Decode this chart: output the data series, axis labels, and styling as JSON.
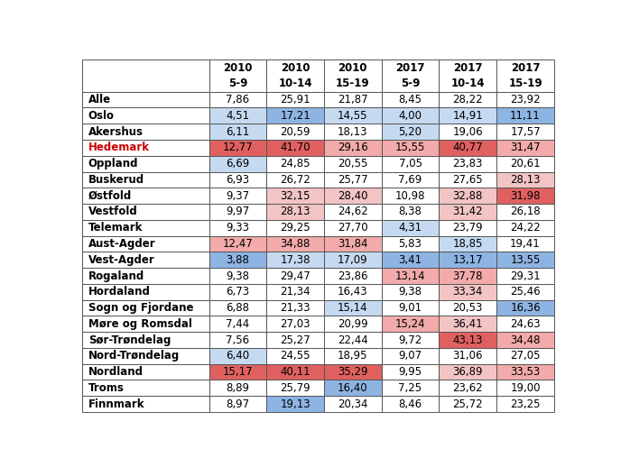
{
  "headers": [
    "",
    "2010\n5-9",
    "2010\n10-14",
    "2010\n15-19",
    "2017\n5-9",
    "2017\n10-14",
    "2017\n15-19"
  ],
  "rows": [
    [
      "Alle",
      "7,86",
      "25,91",
      "21,87",
      "8,45",
      "28,22",
      "23,92"
    ],
    [
      "Oslo",
      "4,51",
      "17,21",
      "14,55",
      "4,00",
      "14,91",
      "11,11"
    ],
    [
      "Akershus",
      "6,11",
      "20,59",
      "18,13",
      "5,20",
      "19,06",
      "17,57"
    ],
    [
      "Hedemark",
      "12,77",
      "41,70",
      "29,16",
      "15,55",
      "40,77",
      "31,47"
    ],
    [
      "Oppland",
      "6,69",
      "24,85",
      "20,55",
      "7,05",
      "23,83",
      "20,61"
    ],
    [
      "Buskerud",
      "6,93",
      "26,72",
      "25,77",
      "7,69",
      "27,65",
      "28,13"
    ],
    [
      "Østfold",
      "9,37",
      "32,15",
      "28,40",
      "10,98",
      "32,88",
      "31,98"
    ],
    [
      "Vestfold",
      "9,97",
      "28,13",
      "24,62",
      "8,38",
      "31,42",
      "26,18"
    ],
    [
      "Telemark",
      "9,33",
      "29,25",
      "27,70",
      "4,31",
      "23,79",
      "24,22"
    ],
    [
      "Aust-Agder",
      "12,47",
      "34,88",
      "31,84",
      "5,83",
      "18,85",
      "19,41"
    ],
    [
      "Vest-Agder",
      "3,88",
      "17,38",
      "17,09",
      "3,41",
      "13,17",
      "13,55"
    ],
    [
      "Rogaland",
      "9,38",
      "29,47",
      "23,86",
      "13,14",
      "37,78",
      "29,31"
    ],
    [
      "Hordaland",
      "6,73",
      "21,34",
      "16,43",
      "9,38",
      "33,34",
      "25,46"
    ],
    [
      "Sogn og Fjordane",
      "6,88",
      "21,33",
      "15,14",
      "9,01",
      "20,53",
      "16,36"
    ],
    [
      "Møre og Romsdal",
      "7,44",
      "27,03",
      "20,99",
      "15,24",
      "36,41",
      "24,63"
    ],
    [
      "Sør-Trøndelag",
      "7,56",
      "25,27",
      "22,44",
      "9,72",
      "43,13",
      "34,48"
    ],
    [
      "Nord-Trøndelag",
      "6,40",
      "24,55",
      "18,95",
      "9,07",
      "31,06",
      "27,05"
    ],
    [
      "Nordland",
      "15,17",
      "40,11",
      "35,29",
      "9,95",
      "36,89",
      "33,53"
    ],
    [
      "Troms",
      "8,89",
      "25,79",
      "16,40",
      "7,25",
      "23,62",
      "19,00"
    ],
    [
      "Finnmark",
      "8,97",
      "19,13",
      "20,34",
      "8,46",
      "25,72",
      "23,25"
    ]
  ],
  "cell_colors": {
    "Oslo": [
      "blue_light",
      "blue_mid",
      "blue_light",
      "blue_light",
      "blue_light",
      "blue_mid"
    ],
    "Akershus": [
      "blue_light",
      "none",
      "none",
      "blue_light",
      "none",
      "none"
    ],
    "Hedemark": [
      "red_mid",
      "red_mid",
      "red_light",
      "red_light",
      "red_mid",
      "red_light"
    ],
    "Oppland": [
      "blue_light",
      "none",
      "none",
      "none",
      "none",
      "none"
    ],
    "Buskerud": [
      "none",
      "none",
      "none",
      "none",
      "none",
      "pink_light"
    ],
    "Østfold": [
      "none",
      "pink_light",
      "pink_light",
      "none",
      "pink_light",
      "red_mid"
    ],
    "Vestfold": [
      "none",
      "pink_light",
      "none",
      "none",
      "pink_light",
      "none"
    ],
    "Telemark": [
      "none",
      "none",
      "none",
      "blue_light",
      "none",
      "none"
    ],
    "Aust-Agder": [
      "red_light",
      "red_light",
      "red_light",
      "none",
      "blue_light",
      "none"
    ],
    "Vest-Agder": [
      "blue_mid",
      "blue_light",
      "blue_light",
      "blue_mid",
      "blue_mid",
      "blue_mid"
    ],
    "Rogaland": [
      "none",
      "none",
      "none",
      "red_light",
      "red_light",
      "none"
    ],
    "Hordaland": [
      "none",
      "none",
      "none",
      "none",
      "pink_light",
      "none"
    ],
    "Sogn og Fjordane": [
      "none",
      "none",
      "blue_light",
      "none",
      "none",
      "blue_mid"
    ],
    "Møre og Romsdal": [
      "none",
      "none",
      "none",
      "red_light",
      "pink_light",
      "none"
    ],
    "Sør-Trøndelag": [
      "none",
      "none",
      "none",
      "none",
      "red_mid",
      "red_light"
    ],
    "Nord-Trøndelag": [
      "blue_light",
      "none",
      "none",
      "none",
      "none",
      "none"
    ],
    "Nordland": [
      "red_mid",
      "red_mid",
      "red_mid",
      "none",
      "pink_light",
      "red_light"
    ],
    "Troms": [
      "none",
      "none",
      "blue_mid",
      "none",
      "none",
      "none"
    ],
    "Finnmark": [
      "none",
      "blue_mid",
      "none",
      "none",
      "none",
      "none"
    ]
  },
  "color_map": {
    "none": "#ffffff",
    "blue_light": "#c5d9f1",
    "blue_mid": "#8db4e2",
    "red_light": "#f2aaaa",
    "red_mid": "#e06060",
    "pink_light": "#f2c4c4"
  },
  "hedemark_name_color": "#cc0000",
  "border_color": "#555555",
  "text_color": "#000000",
  "font_size": 8.5,
  "figsize": [
    6.88,
    5.18
  ],
  "dpi": 100
}
